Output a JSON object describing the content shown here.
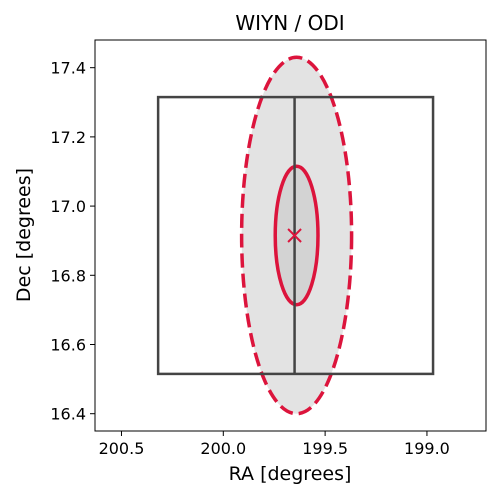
{
  "chart_data": {
    "type": "scatter",
    "title": "WIYN / ODI",
    "xlabel": "RA [degrees]",
    "ylabel": "Dec [degrees]",
    "x_inverted": true,
    "xlim": [
      200.63,
      198.71
    ],
    "ylim": [
      16.35,
      17.48
    ],
    "xticks": [
      {
        "value": 200.5,
        "label": "200.5"
      },
      {
        "value": 200.0,
        "label": "200.0"
      },
      {
        "value": 199.5,
        "label": "199.5"
      },
      {
        "value": 199.0,
        "label": "199.0"
      }
    ],
    "yticks": [
      {
        "value": 16.4,
        "label": "16.4"
      },
      {
        "value": 16.6,
        "label": "16.6"
      },
      {
        "value": 16.8,
        "label": "16.8"
      },
      {
        "value": 17.0,
        "label": "17.0"
      },
      {
        "value": 17.2,
        "label": "17.2"
      },
      {
        "value": 17.4,
        "label": "17.4"
      }
    ],
    "grid": false,
    "marker": {
      "ra": 199.65,
      "dec": 16.915,
      "symbol": "x"
    },
    "error_ellipses": [
      {
        "center": [
          199.64,
          16.915
        ],
        "radius_ra": 0.27,
        "radius_dec": 0.515,
        "style": "dashed",
        "fill": "#e3e3e3"
      },
      {
        "center": [
          199.64,
          16.915
        ],
        "radius_ra": 0.105,
        "radius_dec": 0.2,
        "style": "solid",
        "fill": "#d3d3d3"
      }
    ],
    "footprint": {
      "ra_min": 198.97,
      "ra_max": 200.32,
      "dec_min": 16.515,
      "dec_max": 17.315,
      "divider_ra": 199.65
    }
  },
  "colors": {
    "ellipse_stroke": "#dc143c",
    "marker": "#dc143c",
    "footprint": "#444444",
    "axis": "#000000"
  }
}
